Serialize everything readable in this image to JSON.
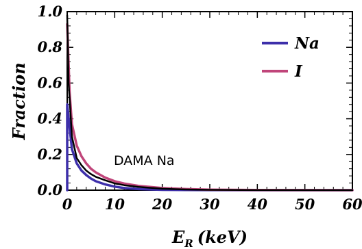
{
  "chart_data": {
    "type": "line",
    "annotation": "DAMA Na",
    "xlabel": {
      "main": "E",
      "sub": "R",
      "unit": "(keV)"
    },
    "ylabel": "Fraction",
    "xlim": [
      0,
      60
    ],
    "ylim": [
      0,
      1.0
    ],
    "xticks": [
      "0",
      "10",
      "20",
      "30",
      "40",
      "50",
      "60"
    ],
    "yticks": [
      "0.0",
      "0.2",
      "0.4",
      "0.6",
      "0.8",
      "1.0"
    ],
    "grid": false,
    "legend_position": "top-right",
    "series": [
      {
        "name": "Na",
        "color": "#3d2faa",
        "x": [
          0,
          0,
          1,
          2,
          3,
          4,
          5,
          6,
          8,
          10,
          12,
          15,
          20,
          25,
          30,
          40,
          60
        ],
        "y": [
          0,
          0.48,
          0.23,
          0.15,
          0.11,
          0.085,
          0.065,
          0.05,
          0.032,
          0.02,
          0.012,
          0.006,
          0.002,
          0.001,
          0.0005,
          0,
          0
        ]
      },
      {
        "name": "I",
        "color": "#c0457a",
        "x": [
          0,
          0.5,
          1,
          2,
          3,
          4,
          5,
          6,
          8,
          10,
          12,
          15,
          20,
          25,
          30,
          40,
          60
        ],
        "y": [
          0.93,
          0.55,
          0.37,
          0.25,
          0.19,
          0.15,
          0.12,
          0.1,
          0.07,
          0.05,
          0.037,
          0.024,
          0.012,
          0.006,
          0.003,
          0.001,
          0
        ]
      },
      {
        "name": "",
        "color": "#000000",
        "x": [
          0,
          0.3,
          1,
          2,
          3,
          4,
          5,
          6,
          8,
          10,
          12,
          15,
          20,
          25,
          30,
          40,
          60
        ],
        "y": [
          0.98,
          0.6,
          0.3,
          0.18,
          0.14,
          0.11,
          0.09,
          0.075,
          0.055,
          0.038,
          0.028,
          0.018,
          0.008,
          0.004,
          0.002,
          0.0005,
          0
        ]
      }
    ]
  }
}
